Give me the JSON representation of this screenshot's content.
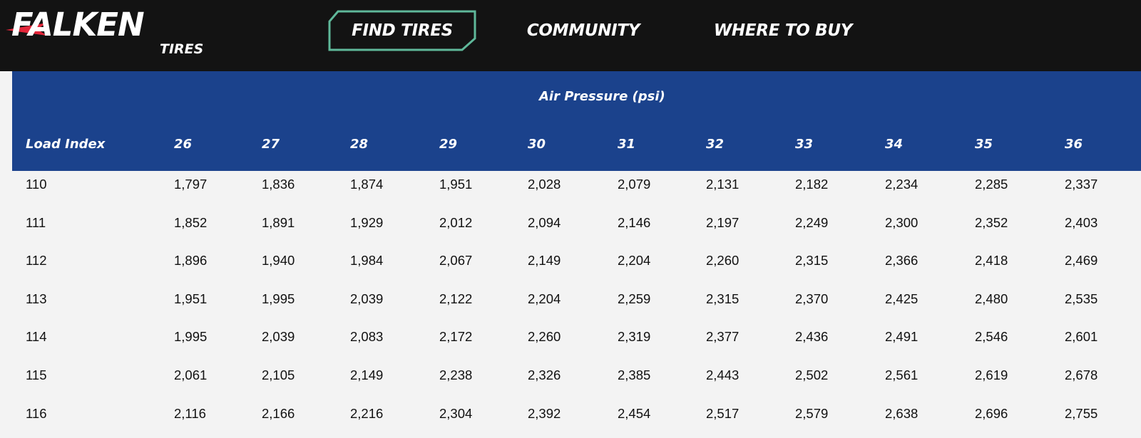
{
  "brand": {
    "name": "FALKEN",
    "sub": "TIRES",
    "accent_color": "#e3263a"
  },
  "nav": {
    "items": [
      {
        "label": "FIND TIRES",
        "active": true
      },
      {
        "label": "COMMUNITY",
        "active": false
      },
      {
        "label": "WHERE TO BUY",
        "active": false
      }
    ],
    "active_outline_color": "#5fb89a"
  },
  "table": {
    "group_header": "Air Pressure (psi)",
    "header_color": "#1b428c",
    "row_header_label": "Load Index",
    "columns": [
      "26",
      "27",
      "28",
      "29",
      "30",
      "31",
      "32",
      "33",
      "34",
      "35",
      "36"
    ],
    "rows": [
      {
        "load_index": "110",
        "values": [
          "1,797",
          "1,836",
          "1,874",
          "1,951",
          "2,028",
          "2,079",
          "2,131",
          "2,182",
          "2,234",
          "2,285",
          "2,337"
        ]
      },
      {
        "load_index": "111",
        "values": [
          "1,852",
          "1,891",
          "1,929",
          "2,012",
          "2,094",
          "2,146",
          "2,197",
          "2,249",
          "2,300",
          "2,352",
          "2,403"
        ]
      },
      {
        "load_index": "112",
        "values": [
          "1,896",
          "1,940",
          "1,984",
          "2,067",
          "2,149",
          "2,204",
          "2,260",
          "2,315",
          "2,366",
          "2,418",
          "2,469"
        ]
      },
      {
        "load_index": "113",
        "values": [
          "1,951",
          "1,995",
          "2,039",
          "2,122",
          "2,204",
          "2,259",
          "2,315",
          "2,370",
          "2,425",
          "2,480",
          "2,535"
        ]
      },
      {
        "load_index": "114",
        "values": [
          "1,995",
          "2,039",
          "2,083",
          "2,172",
          "2,260",
          "2,319",
          "2,377",
          "2,436",
          "2,491",
          "2,546",
          "2,601"
        ]
      },
      {
        "load_index": "115",
        "values": [
          "2,061",
          "2,105",
          "2,149",
          "2,238",
          "2,326",
          "2,385",
          "2,443",
          "2,502",
          "2,561",
          "2,619",
          "2,678"
        ]
      },
      {
        "load_index": "116",
        "values": [
          "2,116",
          "2,166",
          "2,216",
          "2,304",
          "2,392",
          "2,454",
          "2,517",
          "2,579",
          "2,638",
          "2,696",
          "2,755"
        ]
      }
    ]
  }
}
